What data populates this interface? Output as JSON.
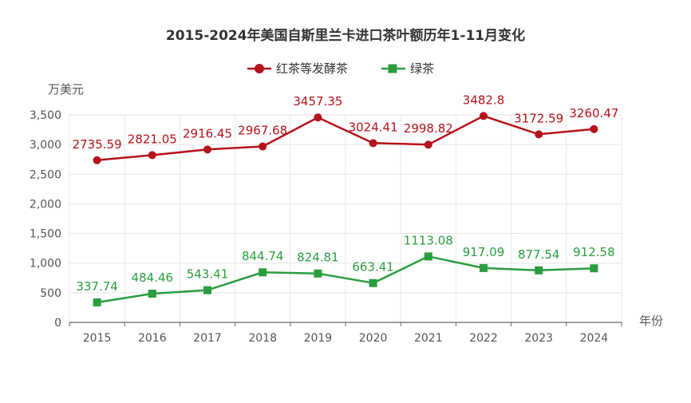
{
  "chart_data": {
    "type": "line",
    "title": "2015-2024年美国自斯里兰卡进口茶叶额历年1-11月变化",
    "xlabel": "年份",
    "ylabel": "万美元",
    "categories": [
      "2015",
      "2016",
      "2017",
      "2018",
      "2019",
      "2020",
      "2021",
      "2022",
      "2023",
      "2024"
    ],
    "ylim": [
      0,
      3500
    ],
    "yticks": [
      0,
      500,
      1000,
      1500,
      2000,
      2500,
      3000,
      3500
    ],
    "ytick_labels": [
      "0",
      "500",
      "1,000",
      "1,500",
      "2,000",
      "2,500",
      "3,000",
      "3,500"
    ],
    "grid": true,
    "legend_position": "top-center",
    "series": [
      {
        "name": "红茶等发酵茶",
        "color": "#b5121b",
        "marker": "circle",
        "values": [
          2735.59,
          2821.05,
          2916.45,
          2967.68,
          3457.35,
          3024.41,
          2998.82,
          3482.8,
          3172.59,
          3260.47
        ],
        "labels": [
          "2735.59",
          "2821.05",
          "2916.45",
          "2967.68",
          "3457.35",
          "3024.41",
          "2998.82",
          "3482.8",
          "3172.59",
          "3260.47"
        ]
      },
      {
        "name": "绿茶",
        "color": "#2a9d3f",
        "marker": "square",
        "values": [
          337.74,
          484.46,
          543.41,
          844.74,
          824.81,
          663.41,
          1113.08,
          917.09,
          877.54,
          912.58
        ],
        "labels": [
          "337.74",
          "484.46",
          "543.41",
          "844.74",
          "824.81",
          "663.41",
          "1113.08",
          "917.09",
          "877.54",
          "912.58"
        ]
      }
    ]
  }
}
